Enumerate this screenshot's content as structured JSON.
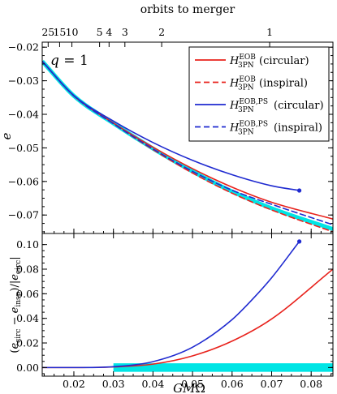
{
  "chart_data": [
    {
      "panel": "top",
      "type": "line",
      "top_axis_label": "orbits to merger",
      "top_ticks": [
        {
          "label": "25",
          "x": 0.0135
        },
        {
          "label": "15",
          "x": 0.0164
        },
        {
          "label": "10",
          "x": 0.0195
        },
        {
          "label": "5",
          "x": 0.0265
        },
        {
          "label": "4",
          "x": 0.0289
        },
        {
          "label": "3",
          "x": 0.0329
        },
        {
          "label": "2",
          "x": 0.0422
        },
        {
          "label": "1",
          "x": 0.0695
        }
      ],
      "ylabel": "e",
      "annotation": "q = 1",
      "xlim": [
        0.012,
        0.0855
      ],
      "ylim": [
        -0.0755,
        -0.0185
      ],
      "yticks": [
        -0.07,
        -0.06,
        -0.05,
        -0.04,
        -0.03,
        -0.02
      ],
      "ytick_labels": [
        "−0.07",
        "−0.06",
        "−0.05",
        "−0.04",
        "−0.03",
        "−0.02"
      ],
      "legend_position": "top-right",
      "legend": [
        {
          "sym": "H",
          "sup": "EOB",
          "sub": "3PN",
          "text": "(circular)",
          "color": "#e8221c",
          "dash": false
        },
        {
          "sym": "H",
          "sup": "EOB",
          "sub": "3PN",
          "text": "(inspiral)",
          "color": "#e8221c",
          "dash": true
        },
        {
          "sym": "H",
          "sup": "EOB,PS",
          "sub": "3PN",
          "text": "(circular)",
          "color": "#1f2ad0",
          "dash": false
        },
        {
          "sym": "H",
          "sup": "EOB,PS",
          "sub": "3PN",
          "text": "(inspiral)",
          "color": "#1f2ad0",
          "dash": true
        }
      ],
      "series": [
        {
          "key": "red_circ",
          "color": "#e8221c",
          "dash": false,
          "x": [
            0.012,
            0.02,
            0.03,
            0.04,
            0.05,
            0.06,
            0.07,
            0.0855
          ],
          "y": [
            -0.0242,
            -0.0345,
            -0.0426,
            -0.0498,
            -0.0562,
            -0.0617,
            -0.0662,
            -0.0712
          ]
        },
        {
          "key": "red_insp",
          "color": "#e8221c",
          "dash": true,
          "x": [
            0.012,
            0.02,
            0.03,
            0.04,
            0.05,
            0.06,
            0.07,
            0.0855
          ],
          "y": [
            -0.0242,
            -0.0345,
            -0.0428,
            -0.0505,
            -0.0575,
            -0.0635,
            -0.0685,
            -0.075
          ]
        },
        {
          "key": "blue_circ",
          "color": "#1f2ad0",
          "dash": false,
          "x": [
            0.012,
            0.02,
            0.03,
            0.04,
            0.05,
            0.06,
            0.07,
            0.077
          ],
          "y": [
            -0.0242,
            -0.0344,
            -0.042,
            -0.0484,
            -0.0537,
            -0.058,
            -0.0613,
            -0.0627
          ]
        },
        {
          "key": "blue_insp",
          "color": "#1f2ad0",
          "dash": true,
          "x": [
            0.012,
            0.02,
            0.03,
            0.04,
            0.05,
            0.06,
            0.07,
            0.0855
          ],
          "y": [
            -0.0242,
            -0.0345,
            -0.0428,
            -0.0503,
            -0.057,
            -0.0626,
            -0.0668,
            -0.0729
          ]
        },
        {
          "key": "cyan",
          "color": "#00e5e5",
          "dash": false,
          "width": 5,
          "x": [
            0.012,
            0.02,
            0.03,
            0.04,
            0.05,
            0.06,
            0.07,
            0.0855
          ],
          "y": [
            -0.0242,
            -0.0345,
            -0.0427,
            -0.0502,
            -0.057,
            -0.063,
            -0.068,
            -0.0742
          ]
        }
      ],
      "markers": [
        {
          "x": 0.077,
          "y": -0.0627,
          "color": "#1f2ad0"
        }
      ]
    },
    {
      "panel": "bottom",
      "type": "line",
      "xlabel": "GMΩ",
      "ylabel": "(e_circ − e_insp)/|e_circ|",
      "xlim": [
        0.012,
        0.0855
      ],
      "ylim": [
        -0.007,
        0.109
      ],
      "xticks": [
        0.02,
        0.03,
        0.04,
        0.05,
        0.06,
        0.07,
        0.08
      ],
      "xtick_labels": [
        "0.02",
        "0.03",
        "0.04",
        "0.05",
        "0.06",
        "0.07",
        "0.08"
      ],
      "yticks": [
        0.0,
        0.02,
        0.04,
        0.06,
        0.08,
        0.1
      ],
      "ytick_labels": [
        "0.00",
        "0.02",
        "0.04",
        "0.06",
        "0.08",
        "0.10"
      ],
      "series": [
        {
          "key": "red_diff",
          "color": "#e8221c",
          "dash": false,
          "x": [
            0.012,
            0.02,
            0.03,
            0.04,
            0.05,
            0.06,
            0.07,
            0.0855
          ],
          "y": [
            0.0,
            0.0,
            0.0005,
            0.0028,
            0.0095,
            0.0215,
            0.0395,
            0.08
          ]
        },
        {
          "key": "blue_diff",
          "color": "#1f2ad0",
          "dash": false,
          "x": [
            0.012,
            0.02,
            0.03,
            0.04,
            0.05,
            0.06,
            0.065,
            0.07,
            0.077
          ],
          "y": [
            0.0,
            0.0,
            0.0007,
            0.0048,
            0.0165,
            0.039,
            0.055,
            0.073,
            0.1025
          ]
        }
      ],
      "band": {
        "color": "#00e5e5",
        "y": [
          -0.0015,
          0.0015
        ],
        "x": [
          0.03,
          0.0855
        ]
      },
      "markers": [
        {
          "x": 0.077,
          "y": 0.1025,
          "color": "#1f2ad0"
        }
      ]
    }
  ]
}
